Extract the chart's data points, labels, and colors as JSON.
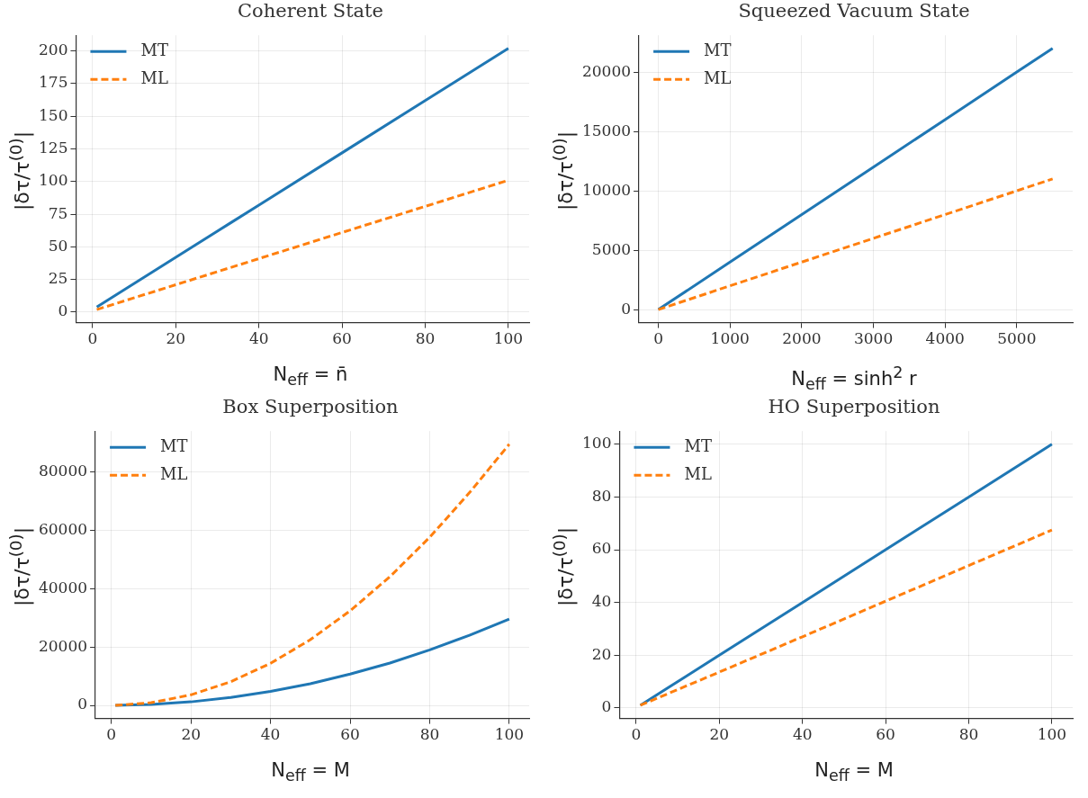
{
  "chart_data": [
    {
      "type": "line",
      "title": "Coherent State",
      "xlabel": "N$_{eff}$ = n̄",
      "ylabel": "|δτ/τ$^{(0)}$|",
      "legend": "top left",
      "grid": true,
      "xlim": [
        -4,
        105
      ],
      "xticks": [
        0,
        20,
        40,
        60,
        80,
        100
      ],
      "ylim": [
        -8,
        212
      ],
      "yticks": [
        0,
        25,
        50,
        75,
        100,
        125,
        150,
        175,
        200
      ],
      "series": [
        {
          "name": "MT",
          "color": "#1f77b4",
          "line_style": "solid",
          "x": [
            1,
            20,
            40,
            60,
            80,
            100
          ],
          "values": [
            4,
            42,
            82,
            122,
            162,
            202
          ]
        },
        {
          "name": "ML",
          "color": "#ff7f0e",
          "line_style": "dashed",
          "x": [
            1,
            20,
            40,
            60,
            80,
            100
          ],
          "values": [
            2,
            21,
            41,
            61,
            81,
            101
          ]
        }
      ]
    },
    {
      "type": "line",
      "title": "Squeezed Vacuum State",
      "xlabel": "N$_{eff}$ = sinh$^{2}$ r",
      "ylabel": "|δτ/τ$^{(0)}$|",
      "legend": "top left",
      "grid": true,
      "xlim": [
        -270,
        5780
      ],
      "xticks": [
        0,
        1000,
        2000,
        3000,
        4000,
        5000
      ],
      "ylim": [
        -1100,
        23100
      ],
      "yticks": [
        0,
        5000,
        10000,
        15000,
        20000
      ],
      "series": [
        {
          "name": "MT",
          "color": "#1f77b4",
          "line_style": "solid",
          "x": [
            0,
            1000,
            2000,
            3000,
            4000,
            5000,
            5500
          ],
          "values": [
            0,
            4000,
            8000,
            12000,
            16000,
            20000,
            22000
          ]
        },
        {
          "name": "ML",
          "color": "#ff7f0e",
          "line_style": "dashed",
          "x": [
            0,
            1000,
            2000,
            3000,
            4000,
            5000,
            5500
          ],
          "values": [
            0,
            2000,
            4000,
            6000,
            8000,
            10000,
            11000
          ]
        }
      ]
    },
    {
      "type": "line",
      "title": "Box Superposition",
      "xlabel": "N$_{eff}$ = M",
      "ylabel": "|δτ/τ$^{(0)}$|",
      "legend": "top left",
      "grid": true,
      "xlim": [
        -4,
        105
      ],
      "xticks": [
        0,
        20,
        40,
        60,
        80,
        100
      ],
      "ylim": [
        -4500,
        94000
      ],
      "yticks": [
        0,
        20000,
        40000,
        60000,
        80000
      ],
      "series": [
        {
          "name": "MT",
          "color": "#1f77b4",
          "line_style": "solid",
          "x": [
            1,
            10,
            20,
            30,
            40,
            50,
            60,
            70,
            80,
            90,
            100
          ],
          "values": [
            0,
            300,
            1200,
            2700,
            4800,
            7400,
            10700,
            14500,
            19000,
            24000,
            29600
          ]
        },
        {
          "name": "ML",
          "color": "#ff7f0e",
          "line_style": "dashed",
          "x": [
            1,
            10,
            20,
            30,
            40,
            50,
            60,
            70,
            80,
            90,
            100
          ],
          "values": [
            0,
            900,
            3600,
            8100,
            14400,
            22500,
            32400,
            44100,
            57600,
            72900,
            89500
          ]
        }
      ]
    },
    {
      "type": "line",
      "title": "HO Superposition",
      "xlabel": "N$_{eff}$ = M",
      "ylabel": "|δτ/τ$^{(0)}$|",
      "legend": "top left",
      "grid": true,
      "xlim": [
        -4,
        105
      ],
      "xticks": [
        0,
        20,
        40,
        60,
        80,
        100
      ],
      "ylim": [
        -4,
        105
      ],
      "yticks": [
        0,
        20,
        40,
        60,
        80,
        100
      ],
      "series": [
        {
          "name": "MT",
          "color": "#1f77b4",
          "line_style": "solid",
          "x": [
            1,
            20,
            40,
            60,
            80,
            100
          ],
          "values": [
            1,
            20,
            40,
            60,
            80,
            100
          ]
        },
        {
          "name": "ML",
          "color": "#ff7f0e",
          "line_style": "dashed",
          "x": [
            1,
            20,
            40,
            60,
            80,
            100
          ],
          "values": [
            1,
            13.6,
            27,
            40.5,
            54,
            67.5
          ]
        }
      ]
    }
  ]
}
